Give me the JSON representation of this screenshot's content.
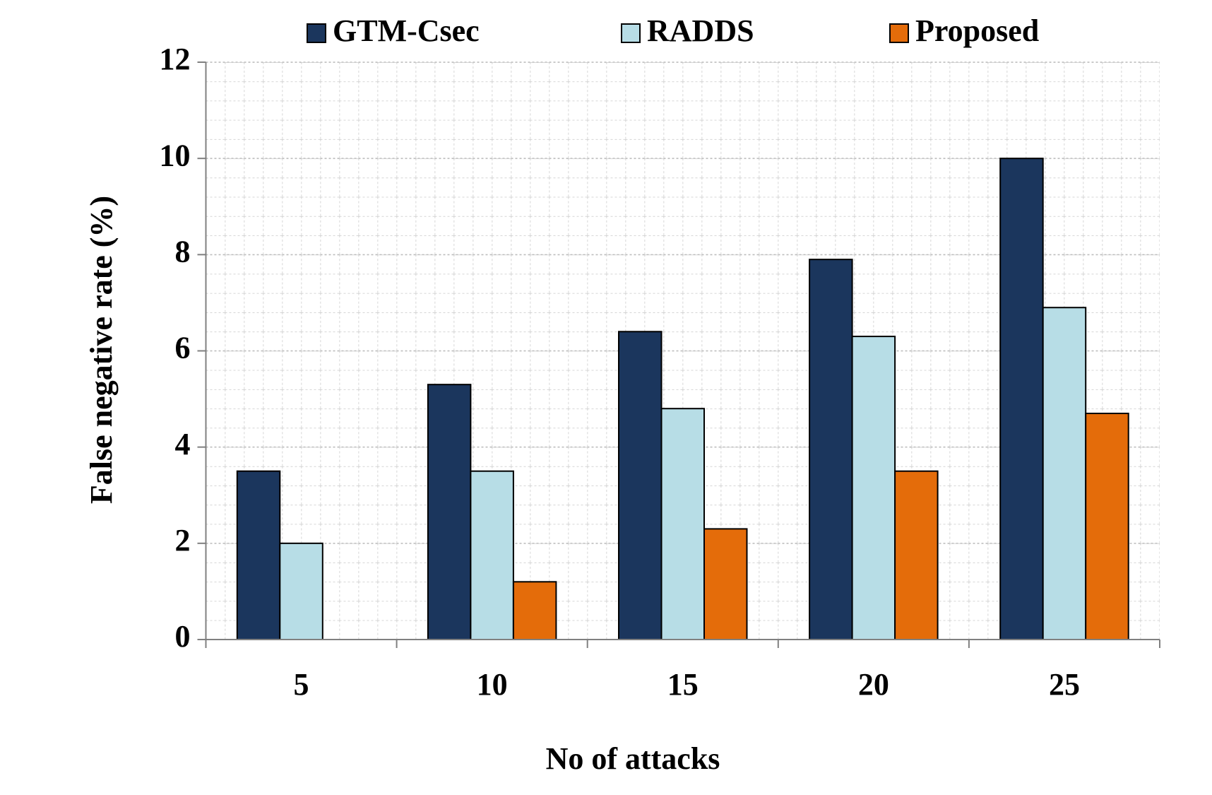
{
  "chart_data": {
    "type": "bar",
    "xlabel": "No of attacks",
    "ylabel": "False negative rate (%)",
    "categories": [
      "5",
      "10",
      "15",
      "20",
      "25"
    ],
    "series": [
      {
        "name": "GTM-Csec",
        "color": "#1b365d",
        "values": [
          3.5,
          5.3,
          6.4,
          7.9,
          10
        ]
      },
      {
        "name": "RADDS",
        "color": "#b7dde6",
        "values": [
          2.0,
          3.5,
          4.8,
          6.3,
          6.9
        ]
      },
      {
        "name": "Proposed",
        "color": "#e46c0a",
        "values": [
          null,
          1.2,
          2.3,
          3.5,
          4.7
        ]
      }
    ],
    "ylim": [
      0,
      12
    ],
    "yticks": [
      0,
      2,
      4,
      6,
      8,
      10,
      12
    ],
    "grid": true,
    "legend": "top"
  }
}
